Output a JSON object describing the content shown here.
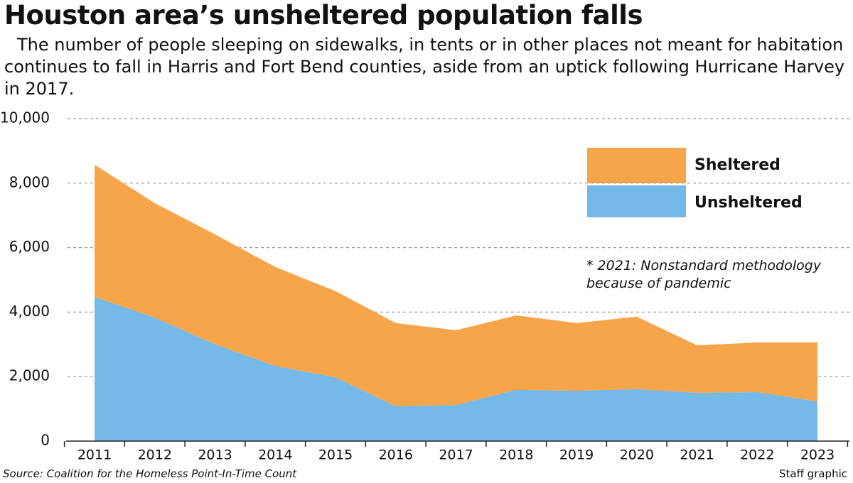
{
  "chart_data": {
    "type": "stacked_area",
    "title": "Houston area’s unsheltered population falls",
    "subtitle": "The number of people sleeping on sidewalks, in tents or in other places not meant for habitation continues to fall in Harris and Fort Bend counties, aside from an uptick following Hurricane Harvey in 2017.",
    "categories": [
      "2011",
      "2012",
      "2013",
      "2014",
      "2015",
      "2016",
      "2017",
      "2018",
      "2019",
      "2020",
      "2021",
      "2022",
      "2023"
    ],
    "series": [
      {
        "name": "Unsheltered",
        "color": "#74b9e8",
        "values": [
          4470,
          3830,
          3000,
          2330,
          1980,
          1080,
          1120,
          1590,
          1560,
          1610,
          1500,
          1520,
          1230
        ]
      },
      {
        "name": "Sheltered",
        "color": "#f7a54a",
        "values": [
          4100,
          3550,
          3410,
          3070,
          2670,
          2580,
          2320,
          2310,
          2100,
          2250,
          1470,
          1540,
          1830
        ]
      }
    ],
    "ylim": [
      0,
      10000
    ],
    "yticks": [
      0,
      {
        "value": 2000,
        "label": "2,000"
      },
      {
        "value": 4000,
        "label": "4,000"
      },
      {
        "value": 6000,
        "label": "6,000"
      },
      {
        "value": 8000,
        "label": "8,000"
      },
      {
        "value": 10000,
        "label": "10,000"
      }
    ],
    "grid": true,
    "annotation": "* 2021: Nonstandard methodology because of pandemic",
    "source": "Source: Coalition for the Homeless Point-In-Time Count",
    "credit": "Staff graphic"
  }
}
